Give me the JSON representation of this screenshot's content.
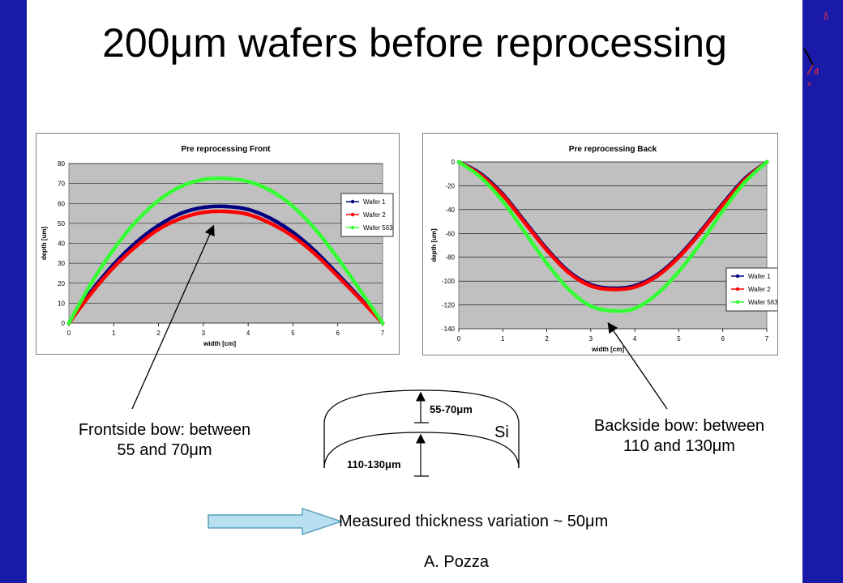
{
  "slide": {
    "title": "200μm wafers before reprocessing",
    "front_callout": [
      "Frontside bow: between",
      "55 and 70μm"
    ],
    "back_callout": [
      "Backside bow: between",
      "110 and 130μm"
    ],
    "diagram": {
      "top_label": "55-70μm",
      "bottom_label": "110-130μm",
      "material_label": "Si"
    },
    "measured_text": "Measured thickness variation ~ 50μm",
    "author": "A. Pozza",
    "colors": {
      "background_band": "#1a1aa8",
      "plot_area": "#c0c0c0",
      "arrow_fill": "#b8e0f0"
    }
  },
  "chart_data": [
    {
      "type": "line",
      "title": "Pre reprocessing Front",
      "xlabel": "width [cm]",
      "ylabel": "depth [um]",
      "xlim": [
        0,
        7
      ],
      "ylim": [
        0,
        80
      ],
      "xticks": [
        0,
        1,
        2,
        3,
        4,
        5,
        6,
        7
      ],
      "yticks": [
        0,
        10,
        20,
        30,
        40,
        50,
        60,
        70,
        80
      ],
      "grid": true,
      "legend": "right",
      "series": [
        {
          "name": "Wafer 1",
          "color": "#000080",
          "marker": "diamond",
          "x": [
            0,
            0.5,
            1,
            1.5,
            2,
            2.5,
            3,
            3.5,
            4,
            4.5,
            5,
            5.5,
            6,
            6.5,
            7
          ],
          "values": [
            0,
            16,
            29.5,
            40.5,
            49,
            55,
            58,
            58.5,
            57,
            52.5,
            45.5,
            36,
            24.5,
            12.5,
            0
          ]
        },
        {
          "name": "Wafer 2",
          "color": "#ff0000",
          "marker": "triangle",
          "x": [
            0,
            0.5,
            1,
            1.5,
            2,
            2.5,
            3,
            3.5,
            4,
            4.5,
            5,
            5.5,
            6,
            6.5,
            7
          ],
          "values": [
            0,
            15,
            28,
            38.5,
            47,
            52.5,
            55.5,
            56,
            54.5,
            50,
            43.5,
            34.5,
            23.5,
            12,
            0
          ]
        },
        {
          "name": "Wafer 563",
          "color": "#33ff33",
          "marker": "star",
          "x": [
            0,
            0.5,
            1,
            1.5,
            2,
            2.5,
            3,
            3.5,
            4,
            4.5,
            5,
            5.5,
            6,
            6.5,
            7
          ],
          "values": [
            0,
            20,
            37,
            51,
            61.5,
            68.5,
            72,
            72.5,
            71,
            66.5,
            58.5,
            47,
            32.5,
            16.5,
            0
          ]
        }
      ]
    },
    {
      "type": "line",
      "title": "Pre reprocessing Back",
      "xlabel": "width [cm]",
      "ylabel": "depth [um]",
      "xlim": [
        0,
        7
      ],
      "ylim": [
        -140,
        0
      ],
      "xticks": [
        0,
        1,
        2,
        3,
        4,
        5,
        6,
        7
      ],
      "yticks": [
        0,
        -20,
        -40,
        -60,
        -80,
        -100,
        -120,
        -140
      ],
      "grid": true,
      "legend": "right",
      "series": [
        {
          "name": "Wafer 1",
          "color": "#000080",
          "marker": "square",
          "x": [
            0,
            0.5,
            1,
            1.5,
            2,
            2.5,
            3,
            3.5,
            4,
            4.5,
            5,
            5.5,
            6,
            6.5,
            7
          ],
          "values": [
            0,
            -10,
            -27,
            -50,
            -73,
            -92,
            -103,
            -106,
            -104,
            -95,
            -79,
            -58,
            -35,
            -14,
            0
          ]
        },
        {
          "name": "Wafer 2",
          "color": "#ff0000",
          "marker": "triangle",
          "x": [
            0,
            0.5,
            1,
            1.5,
            2,
            2.5,
            3,
            3.5,
            4,
            4.5,
            5,
            5.5,
            6,
            6.5,
            7
          ],
          "values": [
            0,
            -11,
            -28,
            -51,
            -74,
            -93,
            -104,
            -107,
            -105,
            -96,
            -80,
            -59,
            -36,
            -15,
            0
          ]
        },
        {
          "name": "Wafer 563",
          "color": "#33ff33",
          "marker": "star",
          "x": [
            0,
            0.5,
            1,
            1.5,
            2,
            2.5,
            3,
            3.5,
            4,
            4.5,
            5,
            5.5,
            6,
            6.5,
            7
          ],
          "values": [
            0,
            -13,
            -33,
            -59,
            -85,
            -107,
            -121,
            -125,
            -123,
            -111,
            -92,
            -68,
            -41,
            -17,
            0
          ]
        }
      ]
    }
  ]
}
